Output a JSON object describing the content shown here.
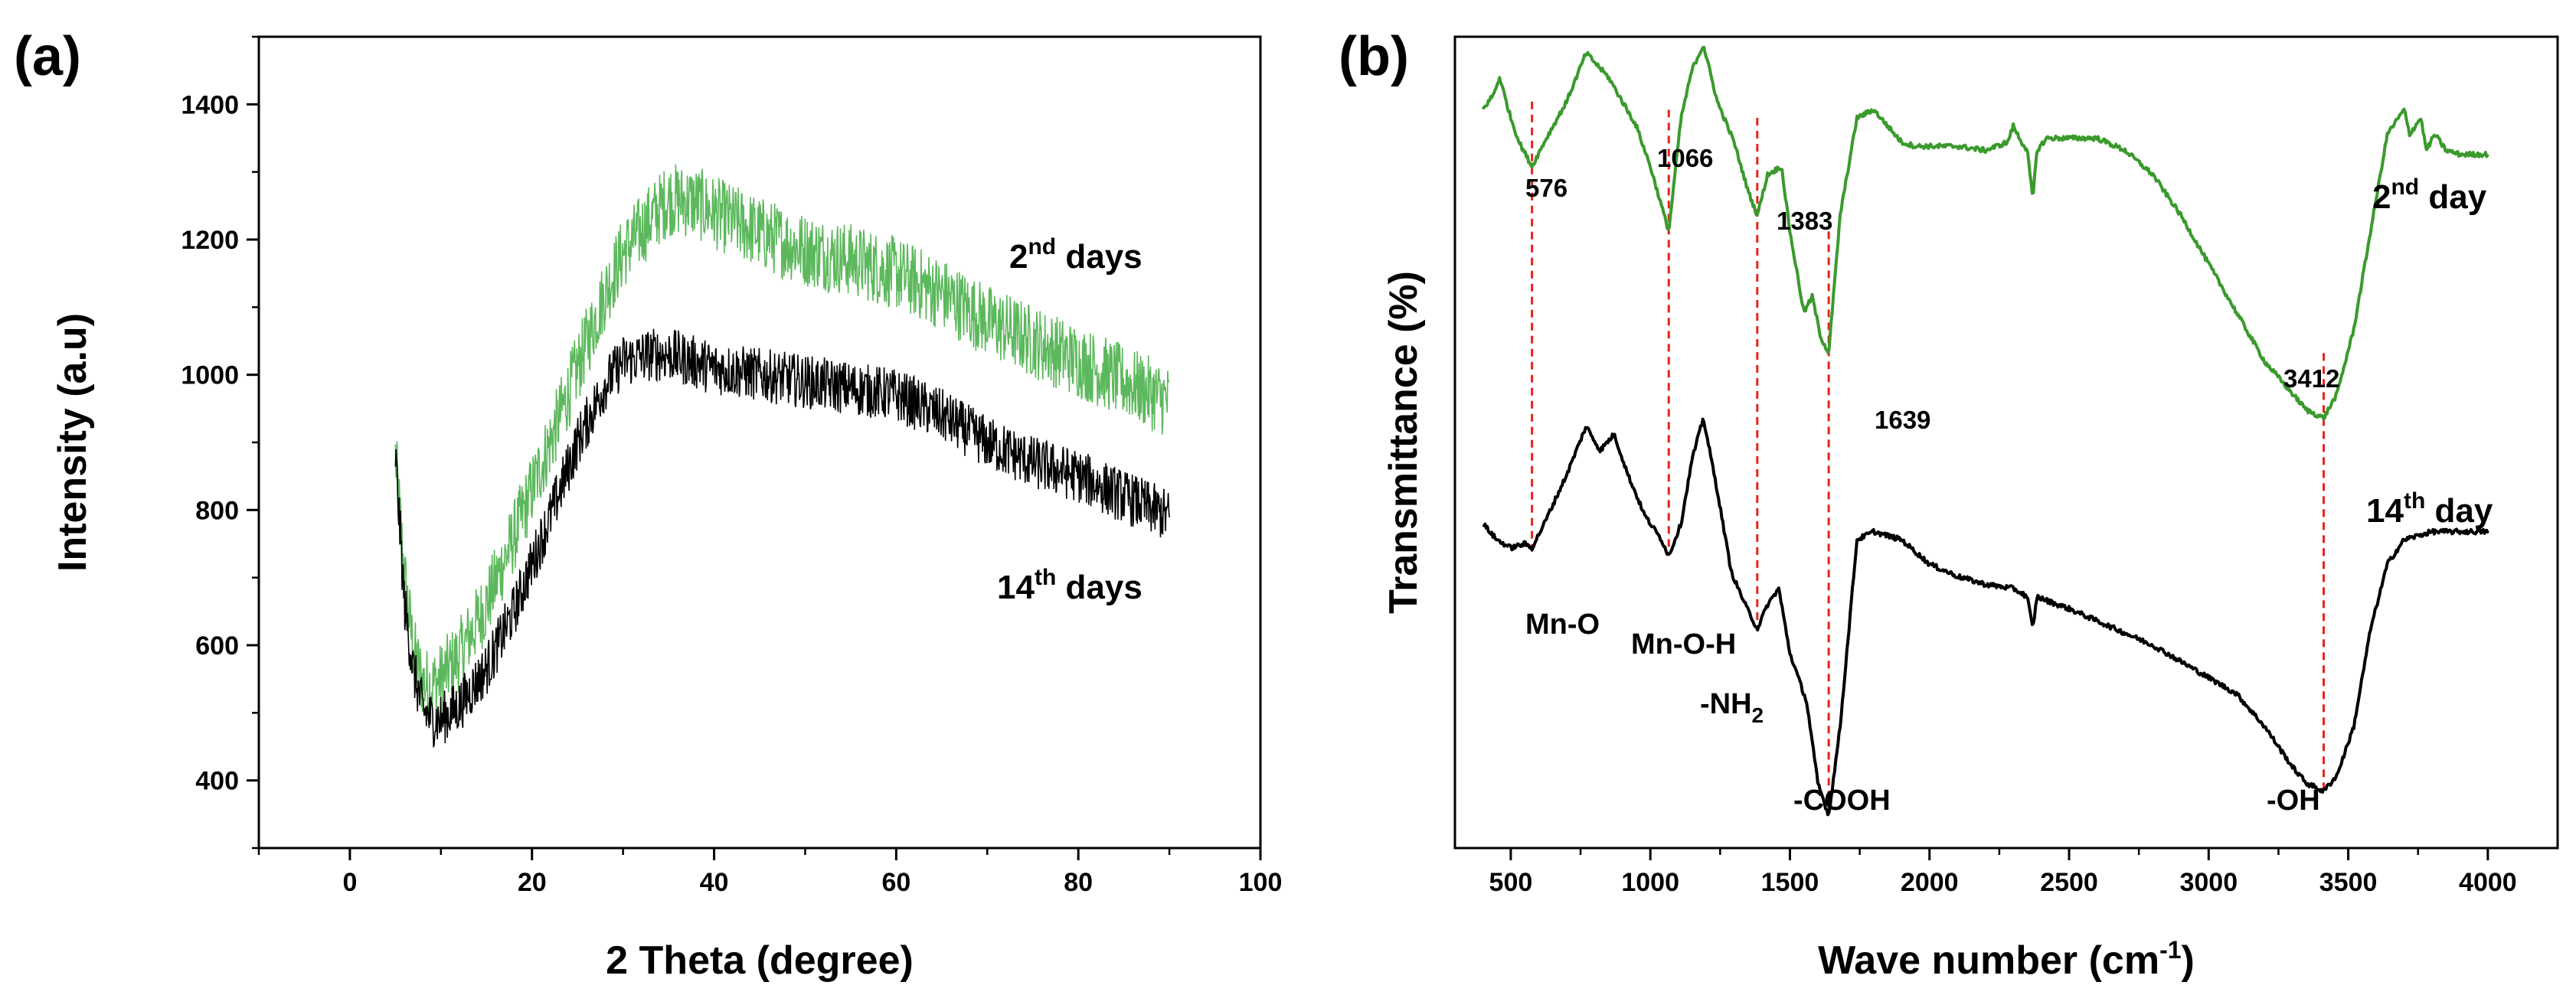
{
  "colors": {
    "green": "#3a9a2c",
    "green_light": "#5cb85c",
    "black": "#000000",
    "marker": "#e8221c"
  },
  "chart_data": [
    {
      "id": "a",
      "type": "line",
      "panel_label": "(a)",
      "title": "",
      "xlabel": "2 Theta (degree)",
      "ylabel": "Intensity (a.u)",
      "xlim": [
        -10,
        100
      ],
      "ylim": [
        300,
        1500
      ],
      "xticks": [
        0,
        20,
        40,
        60,
        80,
        100
      ],
      "yticks": [
        400,
        600,
        800,
        1000,
        1200,
        1400
      ],
      "grid": false,
      "series": [
        {
          "name": "2nd days",
          "label_base": "2",
          "label_sup": "nd",
          "label_rest": " days",
          "color": "#5cb85c",
          "noise": 55,
          "x": [
            5,
            6,
            7,
            8,
            9,
            10,
            12,
            15,
            18,
            20,
            22,
            25,
            28,
            30,
            33,
            35,
            38,
            40,
            45,
            50,
            55,
            60,
            65,
            70,
            75,
            80,
            85,
            90
          ],
          "y": [
            880,
            700,
            590,
            545,
            540,
            550,
            585,
            660,
            760,
            830,
            900,
            1010,
            1120,
            1180,
            1230,
            1260,
            1255,
            1240,
            1210,
            1185,
            1170,
            1150,
            1120,
            1080,
            1050,
            1020,
            990,
            960
          ]
        },
        {
          "name": "14th days",
          "label_base": "14",
          "label_sup": "th",
          "label_rest": " days",
          "color": "#000000",
          "noise": 40,
          "x": [
            5,
            6,
            7,
            8,
            9,
            10,
            12,
            15,
            18,
            20,
            22,
            25,
            28,
            30,
            33,
            35,
            40,
            45,
            50,
            55,
            60,
            65,
            70,
            75,
            80,
            85,
            90
          ],
          "y": [
            880,
            660,
            560,
            505,
            490,
            490,
            510,
            565,
            650,
            720,
            790,
            900,
            985,
            1020,
            1030,
            1030,
            1010,
            1000,
            990,
            980,
            970,
            940,
            900,
            870,
            850,
            820,
            790
          ]
        }
      ]
    },
    {
      "id": "b",
      "type": "line",
      "panel_label": "(b)",
      "title": "",
      "xlabel": "Wave number (cm",
      "xlabel_sup": "-1",
      "xlabel_end": ")",
      "ylabel": "Transmittance (%)",
      "xlim": [
        300,
        4250
      ],
      "ylim": [
        0,
        100
      ],
      "xticks": [
        500,
        1000,
        1500,
        2000,
        2500,
        3000,
        3500,
        4000
      ],
      "yticks": [],
      "grid": false,
      "series": [
        {
          "name": "2nd day",
          "label_base": "2",
          "label_sup": "nd",
          "label_rest": " day",
          "color": "#3a9a2c",
          "x": [
            400,
            440,
            460,
            500,
            530,
            576,
            620,
            700,
            770,
            850,
            950,
            1000,
            1066,
            1110,
            1150,
            1190,
            1240,
            1300,
            1350,
            1383,
            1420,
            1470,
            1500,
            1550,
            1580,
            1610,
            1639,
            1680,
            1740,
            1800,
            1850,
            1900,
            1950,
            2000,
            2100,
            2200,
            2280,
            2300,
            2330,
            2350,
            2370,
            2385,
            2420,
            2500,
            2600,
            2700,
            2800,
            2900,
            3000,
            3100,
            3200,
            3300,
            3350,
            3412,
            3460,
            3520,
            3580,
            3640,
            3700,
            3720,
            3760,
            3780,
            3810,
            3850,
            3900,
            4000
          ],
          "y": [
            91,
            93,
            95,
            90,
            87,
            84,
            87,
            92,
            98,
            95,
            89,
            84,
            76,
            90,
            96,
            99,
            92,
            87,
            81,
            78,
            83,
            84,
            76,
            66,
            68,
            63,
            61,
            78,
            90,
            91,
            89,
            87,
            86.5,
            86.5,
            86.5,
            86,
            87,
            89,
            87,
            86,
            80,
            86,
            87.5,
            87.5,
            87.5,
            86,
            83,
            78,
            72,
            66,
            60,
            56,
            54,
            53,
            56,
            64,
            76,
            88,
            91,
            88,
            90,
            86,
            88,
            86,
            85.5,
            85.5
          ]
        },
        {
          "name": "14th day",
          "label_base": "14",
          "label_sup": "th",
          "label_rest": " day",
          "color": "#000000",
          "x": [
            400,
            450,
            500,
            550,
            576,
            620,
            700,
            770,
            820,
            870,
            920,
            980,
            1040,
            1066,
            1110,
            1150,
            1190,
            1240,
            1290,
            1340,
            1383,
            1420,
            1460,
            1500,
            1560,
            1600,
            1639,
            1680,
            1740,
            1800,
            1900,
            2000,
            2100,
            2200,
            2300,
            2350,
            2370,
            2385,
            2420,
            2500,
            2600,
            2700,
            2800,
            2900,
            3000,
            3100,
            3200,
            3300,
            3350,
            3412,
            3460,
            3520,
            3580,
            3640,
            3700,
            3800,
            3900,
            4000
          ],
          "y": [
            40,
            38,
            37,
            37.5,
            37,
            40,
            46,
            52,
            49,
            51,
            46,
            41,
            38,
            36,
            40,
            48,
            53,
            44,
            34,
            30,
            27,
            30,
            32,
            24,
            18,
            8,
            4,
            15,
            38,
            39,
            38,
            35,
            33.5,
            32.5,
            32,
            31,
            27,
            31,
            30.5,
            29.5,
            28,
            26.5,
            25,
            23,
            21,
            19,
            15,
            10,
            8,
            7,
            9,
            15,
            27,
            35,
            38,
            39,
            39,
            39
          ]
        }
      ],
      "peaks": [
        {
          "x": 576,
          "label": "576",
          "y_top": 84,
          "y_bottom": 37
        },
        {
          "x": 1066,
          "label": "1066",
          "y_top": 83,
          "y_bottom": 36
        },
        {
          "x": 1383,
          "label": "1383",
          "y_top": 82,
          "y_bottom": 27
        },
        {
          "x": 1639,
          "label": "1639",
          "y_top": 68,
          "y_bottom": 4
        },
        {
          "x": 3412,
          "label": "3412",
          "y_top": 53,
          "y_bottom": 7
        }
      ],
      "group_labels": [
        {
          "text": "Mn-O"
        },
        {
          "text": "Mn-O-H"
        },
        {
          "text": "-NH",
          "sub": "2"
        },
        {
          "text": "-COOH"
        },
        {
          "text": "-OH"
        }
      ]
    }
  ]
}
